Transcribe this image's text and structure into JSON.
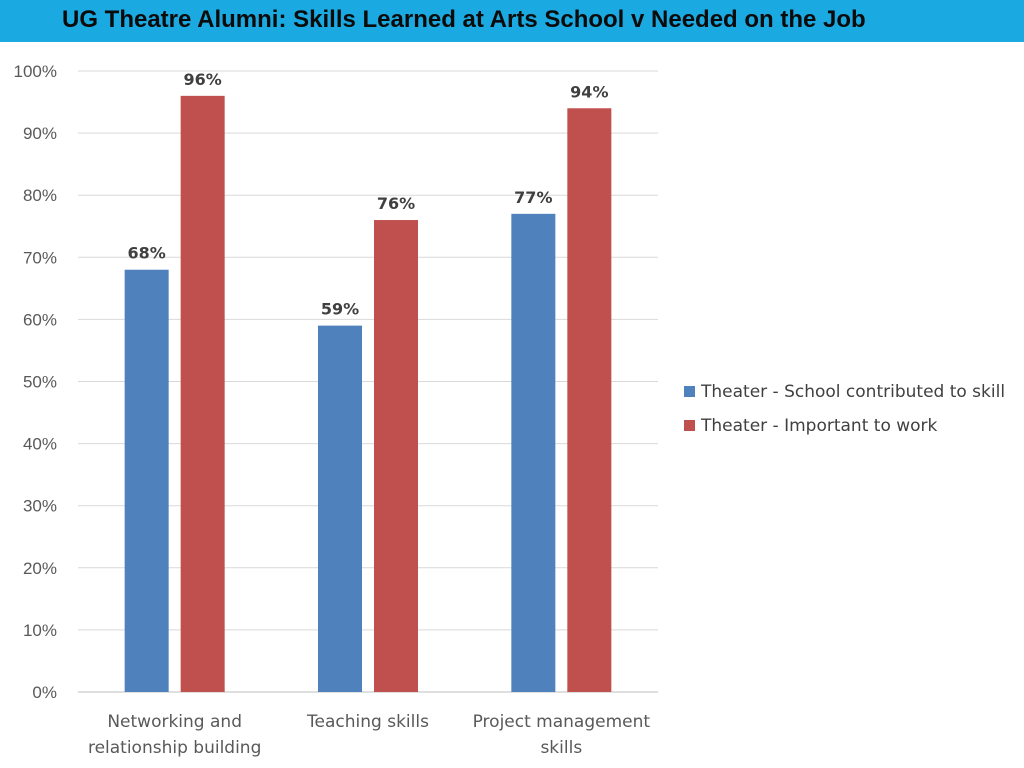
{
  "title": "UG Theatre Alumni: Skills Learned at Arts School v Needed on the Job",
  "colors": {
    "title_bar": "#1ba9e1",
    "series_school": "#4f81bd",
    "series_work": "#c0504d",
    "gridline": "#d9d9d9",
    "axis_text": "#595959"
  },
  "chart_data": {
    "type": "bar",
    "title": "UG Theatre Alumni: Skills Learned at Arts School v Needed on the Job",
    "xlabel": "",
    "ylabel": "",
    "ylim": [
      0,
      100
    ],
    "yticks": [
      0,
      10,
      20,
      30,
      40,
      50,
      60,
      70,
      80,
      90,
      100
    ],
    "ytick_labels": [
      "0%",
      "10%",
      "20%",
      "30%",
      "40%",
      "50%",
      "60%",
      "70%",
      "80%",
      "90%",
      "100%"
    ],
    "grid": true,
    "legend_position": "right",
    "categories": [
      [
        "Networking and",
        "relationship building"
      ],
      [
        "Teaching skills"
      ],
      [
        "Project management",
        "skills"
      ]
    ],
    "series": [
      {
        "name": "Theater - School contributed to skill",
        "color": "#4f81bd",
        "values": [
          68,
          59,
          77
        ],
        "labels": [
          "68%",
          "59%",
          "77%"
        ]
      },
      {
        "name": "Theater - Important to work",
        "color": "#c0504d",
        "values": [
          96,
          76,
          94
        ],
        "labels": [
          "96%",
          "76%",
          "94%"
        ]
      }
    ]
  }
}
